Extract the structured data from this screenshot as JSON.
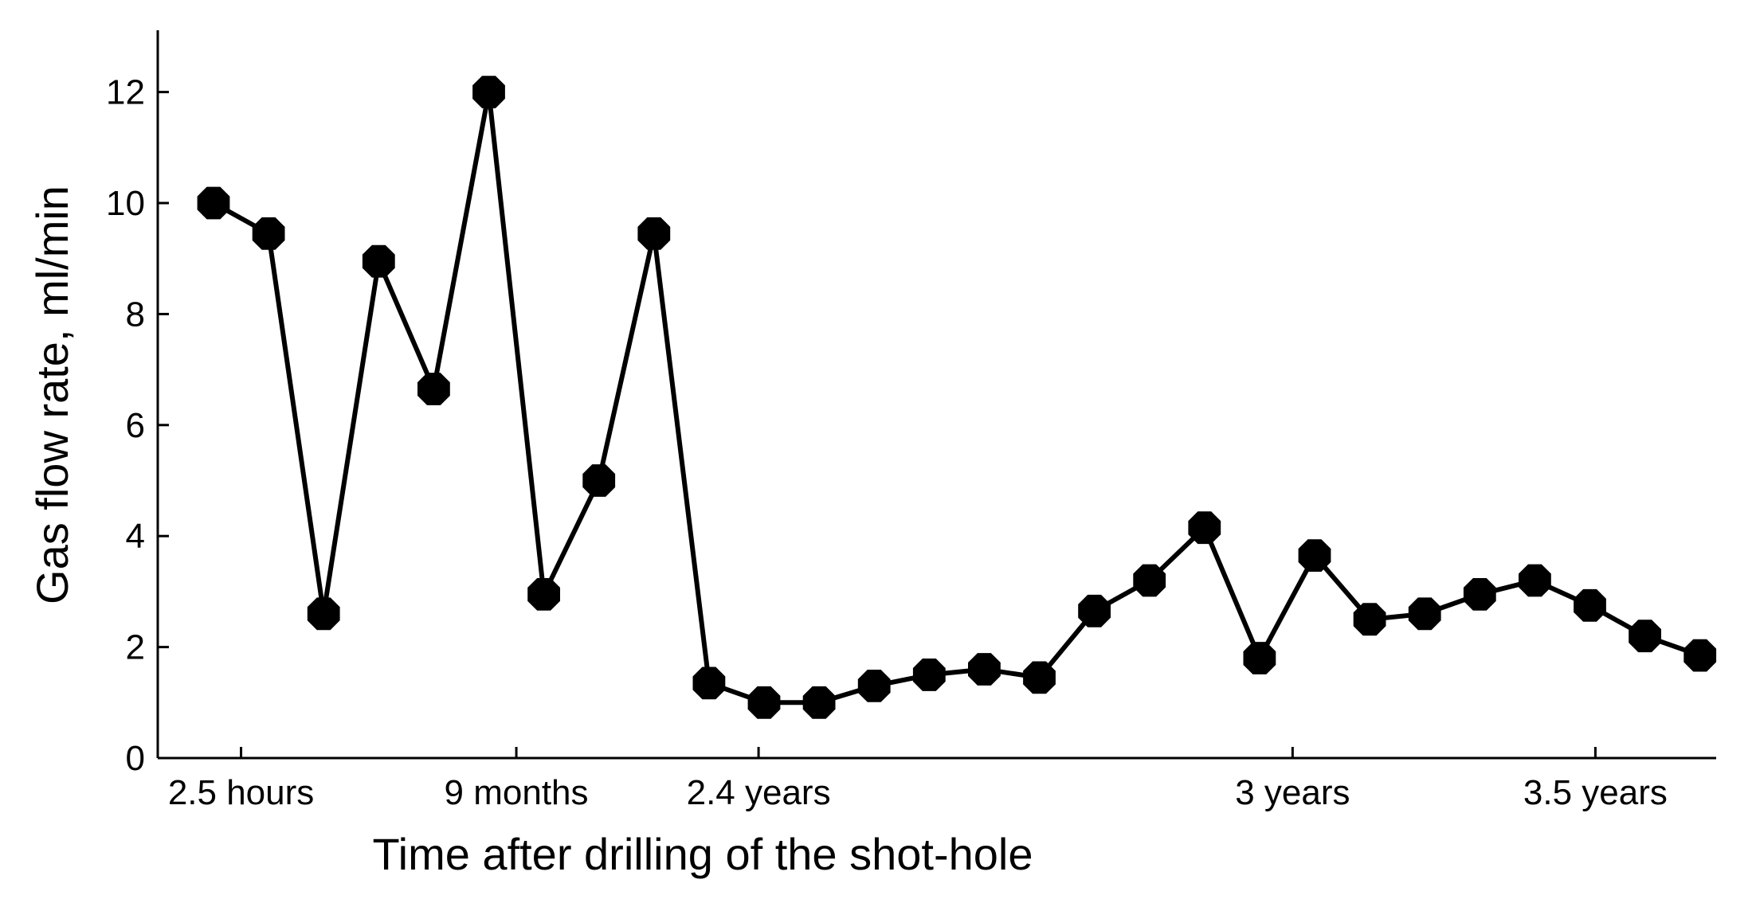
{
  "chart_data": {
    "type": "line",
    "title": "",
    "xlabel": "Time after drilling of the shot-hole",
    "ylabel": "Gas flow rate, ml/min",
    "ylim": [
      0,
      13
    ],
    "xlim": [
      0.2,
      28.5
    ],
    "grid": false,
    "legend": "none",
    "line_color": "#000000",
    "marker_color": "#000000",
    "marker_shape": "octagon",
    "y_ticks": [
      {
        "value": 0,
        "label": "0"
      },
      {
        "value": 2,
        "label": "2"
      },
      {
        "value": 4,
        "label": "4"
      },
      {
        "value": 6,
        "label": "6"
      },
      {
        "value": 8,
        "label": "8"
      },
      {
        "value": 10,
        "label": "10"
      },
      {
        "value": 12,
        "label": "12"
      }
    ],
    "x_ticks": [
      {
        "value": 1.5,
        "label": "2.5 hours"
      },
      {
        "value": 6.5,
        "label": "9 months"
      },
      {
        "value": 10.9,
        "label": "2.4 years"
      },
      {
        "value": 20.6,
        "label": "3 years"
      },
      {
        "value": 26.1,
        "label": "3.5 years"
      }
    ],
    "x": [
      1,
      2,
      3,
      4,
      5,
      6,
      7,
      8,
      9,
      10,
      11,
      12,
      13,
      14,
      15,
      16,
      17,
      18,
      19,
      20,
      21,
      22,
      23,
      24,
      25,
      26,
      27,
      28
    ],
    "series": [
      {
        "values": [
          10.0,
          9.45,
          2.6,
          8.95,
          6.65,
          12.0,
          2.95,
          5.0,
          9.45,
          1.35,
          1.0,
          1.0,
          1.3,
          1.5,
          1.6,
          1.45,
          2.65,
          3.2,
          4.15,
          1.8,
          3.65,
          2.5,
          2.6,
          2.95,
          3.2,
          2.75,
          2.2,
          1.85
        ]
      }
    ]
  }
}
